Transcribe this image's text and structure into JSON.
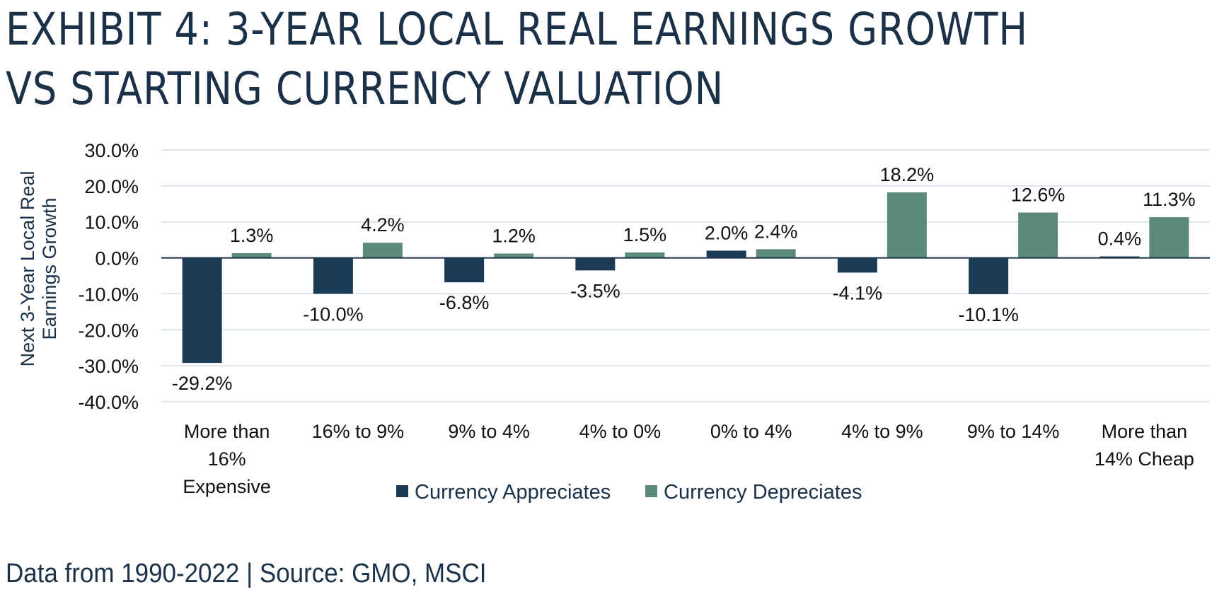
{
  "title": "EXHIBIT 4: 3-YEAR LOCAL REAL EARNINGS GROWTH VS STARTING CURRENCY VALUATION",
  "footer": "Data from 1990-2022 | Source:  GMO, MSCI",
  "colors": {
    "appreciates": "#1b3a56",
    "depreciates": "#5b8b78",
    "grid": "#d3dde6",
    "axis": "#1b3148"
  },
  "chart_data": {
    "type": "bar",
    "title": "EXHIBIT 4: 3-YEAR LOCAL REAL EARNINGS GROWTH VS STARTING CURRENCY VALUATION",
    "ylabel": "Next 3-Year Local Real Earnings Growth",
    "ylabel_lines": [
      "Next 3-Year Local Real",
      "Earnings Growth"
    ],
    "xlabel": "",
    "ylim": [
      -40,
      30
    ],
    "yticks": [
      30,
      20,
      10,
      0,
      -10,
      -20,
      -30,
      -40
    ],
    "ytick_labels": [
      "30.0%",
      "20.0%",
      "10.0%",
      "0.0%",
      "-10.0%",
      "-20.0%",
      "-30.0%",
      "-40.0%"
    ],
    "grid": true,
    "legend_position": "bottom-center",
    "categories": [
      "More than 16% Expensive",
      "16% to 9%",
      "9% to 4%",
      "4% to 0%",
      "0% to 4%",
      "4% to 9%",
      "9% to 14%",
      "More than 14% Cheap"
    ],
    "category_lines": [
      [
        "More than",
        "16%",
        "Expensive"
      ],
      [
        "16% to 9%"
      ],
      [
        "9% to 4%"
      ],
      [
        "4% to 0%"
      ],
      [
        "0% to 4%"
      ],
      [
        "4% to 9%"
      ],
      [
        "9% to 14%"
      ],
      [
        "More than",
        "14% Cheap"
      ]
    ],
    "series": [
      {
        "name": "Currency Appreciates",
        "values": [
          -29.2,
          -10.0,
          -6.8,
          -3.5,
          2.0,
          -4.1,
          -10.1,
          0.4
        ],
        "labels": [
          "-29.2%",
          "-10.0%",
          "-6.8%",
          "-3.5%",
          "2.0%",
          "-4.1%",
          "-10.1%",
          "0.4%"
        ]
      },
      {
        "name": "Currency Depreciates",
        "values": [
          1.3,
          4.2,
          1.2,
          1.5,
          2.4,
          18.2,
          12.6,
          11.3
        ],
        "labels": [
          "1.3%",
          "4.2%",
          "1.2%",
          "1.5%",
          "2.4%",
          "18.2%",
          "12.6%",
          "11.3%"
        ]
      }
    ]
  }
}
